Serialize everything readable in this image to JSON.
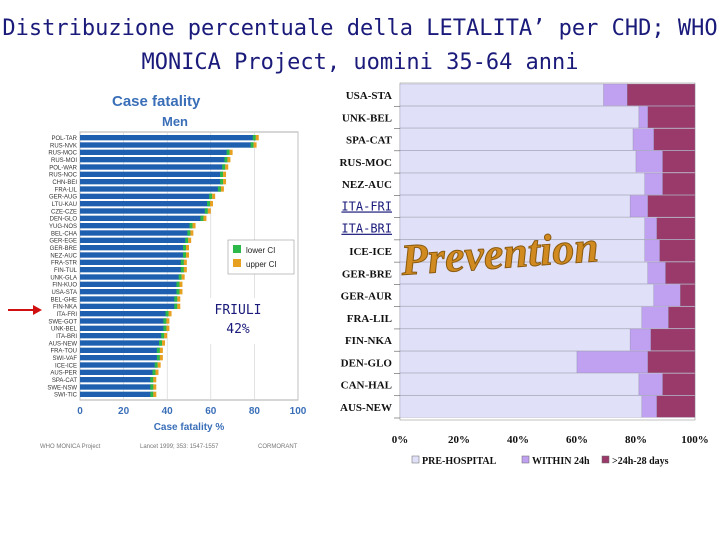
{
  "title_line1": "Distribuzione percentuale della LETALITA’ per CHD; WHO",
  "title_line2": "MONICA Project, uomini 35-64 anni",
  "chart_data": [
    {
      "type": "bar",
      "orientation": "horizontal",
      "title": "Case fatality",
      "subtitle": "Men",
      "xlabel": "Case fatality %",
      "xlim": [
        0,
        100
      ],
      "xticks": [
        "0",
        "20",
        "40",
        "60",
        "80",
        "100"
      ],
      "categories": [
        "POL-TAR",
        "RUS-NVK",
        "RUS-MOC",
        "RUS-MOI",
        "POL-WAR",
        "RUS-NOC",
        "CHN-BEI",
        "FRA-LIL",
        "GER-AUG",
        "LTU-KAU",
        "CZE-CZE",
        "DEN-GLO",
        "YUG-NOS",
        "BEL-CHA",
        "GER-EGE",
        "GER-BRE",
        "NEZ-AUC",
        "FRA-STR",
        "FIN-TUL",
        "UNK-GLA",
        "FIN-KUO",
        "USA-STA",
        "BEL-GHE",
        "FIN-NKA",
        "ITA-FRI",
        "SWE-GOT",
        "UNK-BEL",
        "ITA-BRI",
        "AUS-NEW",
        "FRA-TOU",
        "SWI-VAF",
        "ICE-ICE",
        "AUS-PER",
        "SPA-CAT",
        "SWE-NSW",
        "SWI-TIC"
      ],
      "values": [
        82,
        81,
        70,
        69,
        68,
        67,
        67,
        66,
        62,
        61,
        60,
        58,
        53,
        52,
        51,
        50,
        50,
        49,
        49,
        48,
        47,
        47,
        46,
        46,
        42,
        41,
        41,
        40,
        39,
        38,
        38,
        37,
        36,
        35,
        35,
        35
      ],
      "legend": [
        "lower CI",
        "upper CI"
      ],
      "legend_colors": [
        "#2db84a",
        "#e8a020"
      ],
      "bar_color": "#1e5fb0",
      "annotation_label": "FRIULI",
      "annotation_value": "42%",
      "footer_left": "WHO MONICA Project",
      "footer_mid": "Lancet 1999; 353: 1547-1557",
      "footer_right": "CORMORANT"
    },
    {
      "type": "bar",
      "orientation": "horizontal",
      "stacked": true,
      "xticks": [
        "0%",
        "20%",
        "40%",
        "60%",
        "80%",
        "100%"
      ],
      "xlim": [
        0,
        100
      ],
      "categories": [
        "USA-STA",
        "UNK-BEL",
        "SPA-CAT",
        "RUS-MOC",
        "NEZ-AUC",
        "ITA-FRI",
        "ITA-BRI",
        "ICE-ICE",
        "GER-BRE",
        "GER-AUR",
        "FRA-LIL",
        "FIN-NKA",
        "DEN-GLO",
        "CAN-HAL",
        "AUS-NEW"
      ],
      "series": [
        {
          "name": "PRE-HOSPITAL",
          "color": "#e0e0f8",
          "values": [
            69,
            81,
            79,
            80,
            83,
            78,
            83,
            83,
            84,
            86,
            82,
            78,
            60,
            81,
            82
          ]
        },
        {
          "name": "WITHIN 24h",
          "color": "#c0a0f0",
          "values": [
            8,
            3,
            7,
            9,
            6,
            6,
            4,
            5,
            6,
            9,
            9,
            7,
            24,
            8,
            5
          ]
        },
        {
          "name": ">24h-28 days",
          "color": "#9a3a6a",
          "values": [
            23,
            16,
            14,
            11,
            11,
            16,
            13,
            12,
            10,
            5,
            9,
            15,
            16,
            11,
            13
          ]
        }
      ],
      "highlighted": [
        "ITA-FRI",
        "ITA-BRI"
      ],
      "watermark": "Prevention"
    }
  ]
}
